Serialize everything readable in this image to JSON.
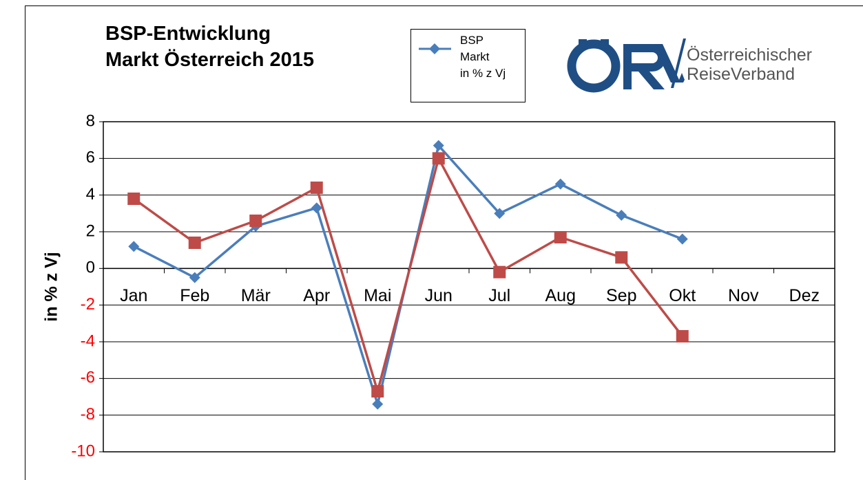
{
  "chart_data": {
    "type": "line",
    "title": "BSP-Entwicklung\nMarkt Österreich 2015",
    "y_label": "in % z Vj",
    "categories": [
      "Jan",
      "Feb",
      "Mär",
      "Apr",
      "Mai",
      "Jun",
      "Jul",
      "Aug",
      "Sep",
      "Okt",
      "Nov",
      "Dez"
    ],
    "series": [
      {
        "name": "BSP\nMarkt\nin % z Vj",
        "color": "#4a7ebb",
        "marker": "diamond",
        "values": [
          1.2,
          -0.5,
          2.3,
          3.3,
          -7.4,
          6.7,
          3.0,
          4.6,
          2.9,
          1.6,
          null,
          null
        ]
      },
      {
        "color": "#be4b48",
        "marker": "square",
        "values": [
          3.8,
          1.4,
          2.6,
          4.4,
          -6.7,
          6.0,
          -0.2,
          1.7,
          0.6,
          -3.7,
          null,
          null
        ]
      }
    ],
    "ylim": [
      -10,
      8
    ],
    "yticks": [
      -10,
      -8,
      -6,
      -4,
      -2,
      0,
      2,
      4,
      6,
      8
    ],
    "negative_tick_color": "#ff0000",
    "grid": true
  },
  "logo": {
    "text": "Österreichischer\nReiseVerband"
  }
}
